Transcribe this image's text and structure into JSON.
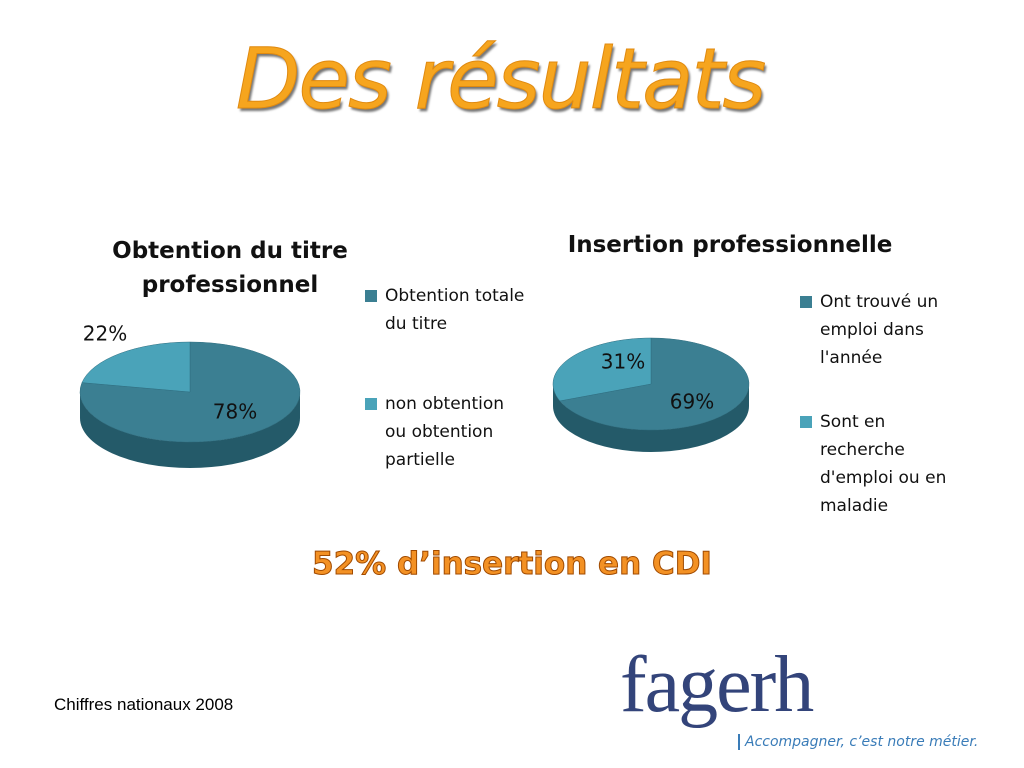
{
  "title": "Des résultats",
  "chart_data": [
    {
      "type": "pie",
      "title": "Obtention du titre professionnel",
      "categories": [
        "Obtention totale du titre",
        "non obtention ou obtention partielle"
      ],
      "values": [
        78,
        22
      ],
      "value_labels": [
        "78%",
        "22%"
      ],
      "colors": [
        "#3b7f92",
        "#4aa3b9"
      ]
    },
    {
      "type": "pie",
      "title": "Insertion professionnelle",
      "categories": [
        "Ont trouvé un emploi dans l'année",
        "Sont en recherche d'emploi ou en maladie"
      ],
      "values": [
        69,
        31
      ],
      "value_labels": [
        "69%",
        "31%"
      ],
      "colors": [
        "#3b7f92",
        "#4aa3b9"
      ]
    }
  ],
  "highlight": "52% d’insertion en CDI",
  "footnote": "Chiffres nationaux 2008",
  "logo": {
    "name": "fagerh",
    "tagline": "Accompagner, c’est notre métier."
  }
}
